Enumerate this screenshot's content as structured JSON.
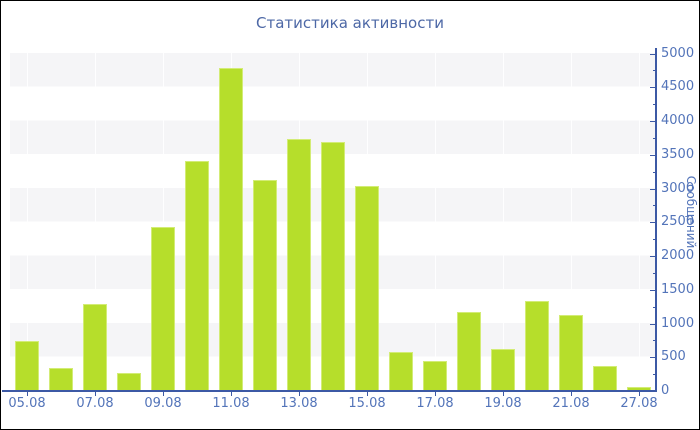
{
  "chart_data": {
    "type": "bar",
    "title": "Статистика активности",
    "ylabel": "Сообщений",
    "xlabel": "",
    "ylim": [
      0,
      5000
    ],
    "ytick_major": 500,
    "ytick_minor": 250,
    "grid": "horizontal alternating bands, faint white vertical lines at labeled categories",
    "legend": "none",
    "categories": [
      "05.08",
      "",
      "07.08",
      "",
      "09.08",
      "",
      "11.08",
      "",
      "13.08",
      "",
      "15.08",
      "",
      "17.08",
      "",
      "19.08",
      "",
      "21.08",
      "",
      "27.08"
    ],
    "values": [
      730,
      330,
      1270,
      250,
      2410,
      3400,
      4770,
      3110,
      3720,
      3670,
      3020,
      560,
      430,
      1160,
      610,
      1320,
      1110,
      350,
      40
    ]
  },
  "colors": {
    "bar_fill": "#b6de2b",
    "bar_edge": "#d3ec76",
    "axis_line": "#3c59a5",
    "tick_text": "#5374b9",
    "title_text": "#4d68a6",
    "band_gray": "#f5f5f7",
    "background": "#ffffff",
    "frame_border": "#000000"
  }
}
